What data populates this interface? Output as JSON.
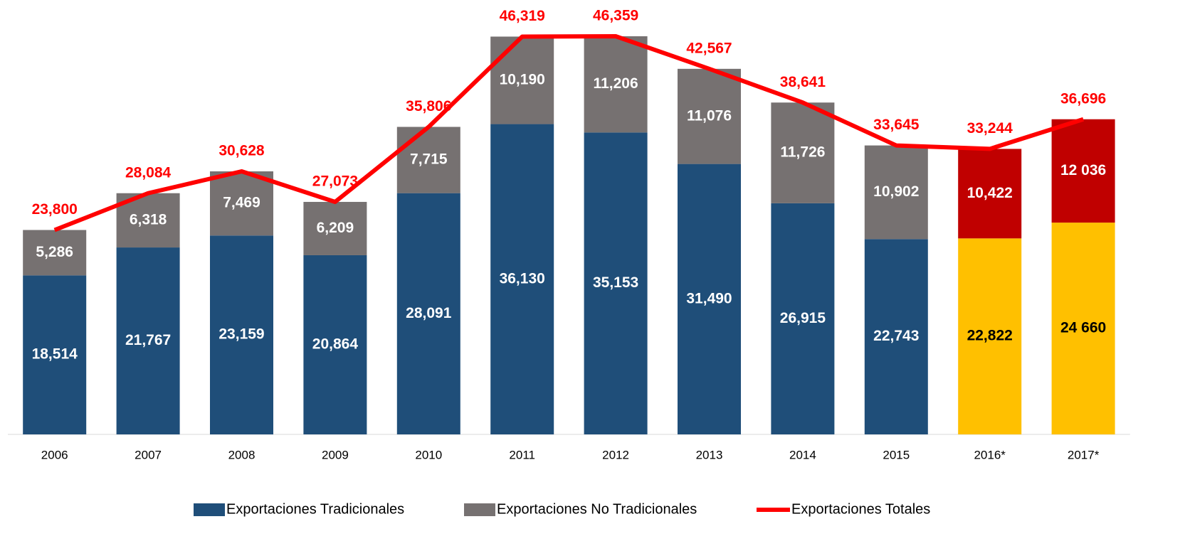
{
  "chart_data": {
    "type": "bar+line",
    "categories": [
      "2006",
      "2007",
      "2008",
      "2009",
      "2010",
      "2011",
      "2012",
      "2013",
      "2014",
      "2015",
      "2016*",
      "2017*"
    ],
    "series": [
      {
        "name": "Exportaciones Tradicionales",
        "type": "bar",
        "color": "#1f4e79",
        "colors": [
          "#1f4e79",
          "#1f4e79",
          "#1f4e79",
          "#1f4e79",
          "#1f4e79",
          "#1f4e79",
          "#1f4e79",
          "#1f4e79",
          "#1f4e79",
          "#1f4e79",
          "#ffc000",
          "#ffc000"
        ],
        "values": [
          18514,
          21767,
          23159,
          20864,
          28091,
          36130,
          35153,
          31490,
          26915,
          22743,
          22822,
          24660
        ],
        "value_labels": [
          "18,514",
          "21,767",
          "23,159",
          "20,864",
          "28,091",
          "36,130",
          "35,153",
          "31,490",
          "26,915",
          "22,743",
          "22,822",
          "24 660"
        ]
      },
      {
        "name": "Exportaciones No Tradicionales",
        "type": "bar",
        "color": "#767171",
        "colors": [
          "#767171",
          "#767171",
          "#767171",
          "#767171",
          "#767171",
          "#767171",
          "#767171",
          "#767171",
          "#767171",
          "#767171",
          "#c00000",
          "#c00000"
        ],
        "values": [
          5286,
          6318,
          7469,
          6209,
          7715,
          10190,
          11206,
          11076,
          11726,
          10902,
          10422,
          12036
        ],
        "value_labels": [
          "5,286",
          "6,318",
          "7,469",
          "6,209",
          "7,715",
          "10,190",
          "11,206",
          "11,076",
          "11,726",
          "10,902",
          "10,422",
          "12 036"
        ]
      },
      {
        "name": "Exportaciones Totales",
        "type": "line",
        "color": "#ff0000",
        "values": [
          23800,
          28084,
          30628,
          27073,
          35806,
          46319,
          46359,
          42567,
          38641,
          33645,
          33244,
          36696
        ],
        "value_labels": [
          "23,800",
          "28,084",
          "30,628",
          "27,073",
          "35,806",
          "46,319",
          "46,359",
          "42,567",
          "38,641",
          "33,645",
          "33,244",
          "36,696"
        ]
      }
    ],
    "legend": "bottom"
  }
}
